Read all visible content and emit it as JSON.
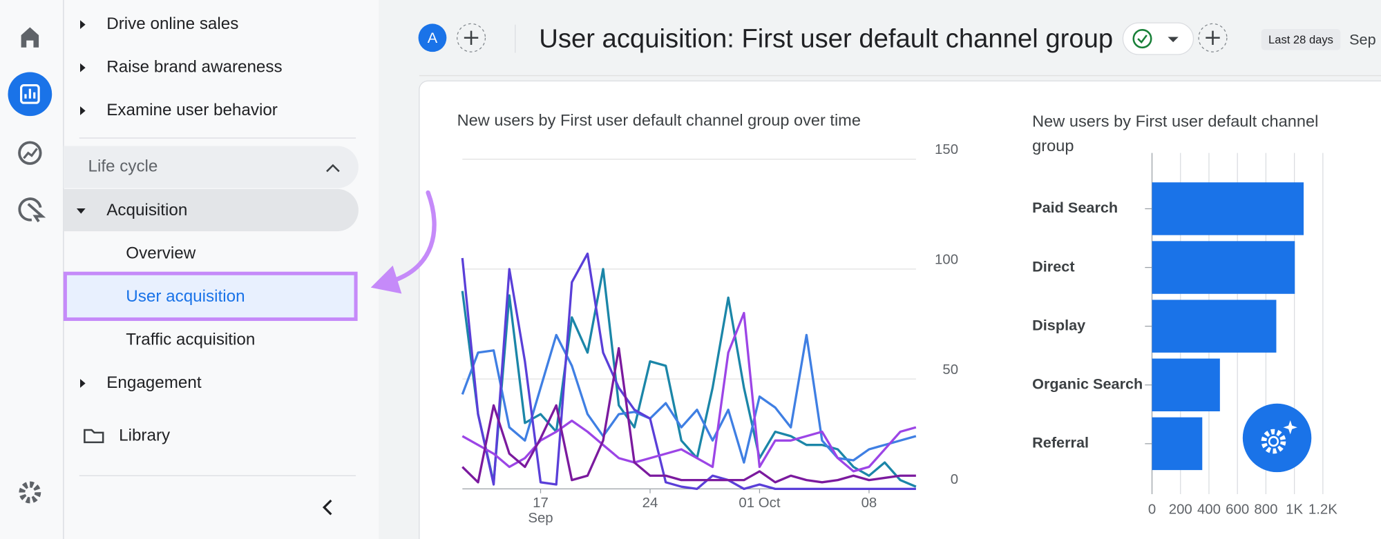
{
  "sidebar": {
    "items": [
      "Drive online sales",
      "Raise brand awareness",
      "Examine user behavior"
    ],
    "section": "Life cycle",
    "group": "Acquisition",
    "subitems": [
      "Overview",
      "User acquisition",
      "Traffic acquisition"
    ],
    "more": [
      "Engagement"
    ],
    "library": "Library"
  },
  "header": {
    "avatar": "A",
    "title": "User acquisition: First user default channel group",
    "date_range": "Last 28 days",
    "date_start": "Sep"
  },
  "chart_data": [
    {
      "type": "line",
      "title": "New users by First user default channel group over time",
      "categories": [
        null,
        null,
        null,
        null,
        null,
        "17 Sep",
        null,
        null,
        null,
        null,
        null,
        null,
        "24",
        null,
        null,
        null,
        null,
        null,
        null,
        "01 Oct",
        null,
        null,
        null,
        null,
        null,
        null,
        "08",
        null,
        null,
        null
      ],
      "ylim": [
        0,
        150
      ],
      "yticks": [
        0,
        50,
        100,
        150
      ],
      "grid": true,
      "series": [
        {
          "color": "#1b86a8",
          "values": [
            90,
            34,
            3,
            88,
            30,
            34,
            26,
            78,
            62,
            100,
            38,
            28,
            58,
            56,
            22,
            14,
            46,
            87,
            46,
            14,
            26,
            24,
            20,
            20,
            18,
            10,
            6,
            12,
            4,
            1
          ]
        },
        {
          "color": "#3f7fe3",
          "values": [
            43,
            62,
            63,
            28,
            22,
            46,
            70,
            56,
            34,
            24,
            34,
            35,
            32,
            39,
            28,
            36,
            22,
            36,
            12,
            42,
            37,
            28,
            70,
            22,
            14,
            13,
            18,
            20,
            22,
            24
          ]
        },
        {
          "color": "#5a3fd8",
          "values": [
            105,
            34,
            2,
            100,
            58,
            3,
            2,
            94,
            107,
            62,
            46,
            36,
            32,
            3,
            1,
            0,
            6,
            4,
            0,
            2,
            0,
            0,
            0,
            0,
            0,
            0,
            0,
            0,
            0,
            0
          ]
        },
        {
          "color": "#9c45e6",
          "values": [
            24,
            20,
            16,
            10,
            14,
            22,
            26,
            31,
            26,
            20,
            14,
            12,
            14,
            16,
            18,
            14,
            10,
            62,
            80,
            10,
            22,
            22,
            24,
            26,
            14,
            8,
            10,
            18,
            26,
            28
          ]
        },
        {
          "color": "#7b1a9e",
          "values": [
            10,
            3,
            38,
            16,
            10,
            23,
            38,
            4,
            6,
            22,
            64,
            12,
            6,
            6,
            4,
            4,
            4,
            4,
            4,
            8,
            3,
            6,
            4,
            3,
            4,
            6,
            4,
            5,
            6,
            6
          ]
        }
      ]
    },
    {
      "type": "bar",
      "title": "New users by First user default channel group",
      "categories": [
        "Paid Search",
        "Direct",
        "Display",
        "Organic Search",
        "Referral"
      ],
      "values": [
        1065,
        1003,
        873,
        477,
        353
      ],
      "color": "#1a73e8",
      "xlim": [
        0,
        1200
      ],
      "xticks": [
        0,
        200,
        400,
        600,
        800,
        {
          "value": 1000,
          "label": "1K"
        },
        {
          "value": 1200,
          "label": "1.2K"
        }
      ],
      "grid": true
    }
  ]
}
